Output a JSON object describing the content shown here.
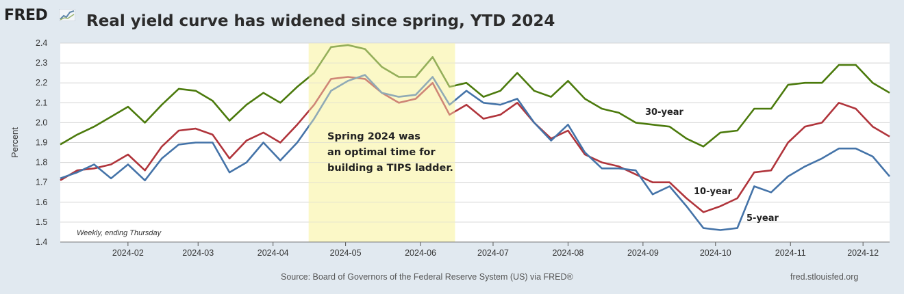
{
  "header": {
    "logo_text": "FRED",
    "title": "Real yield curve has widened since spring, YTD 2024"
  },
  "footer": {
    "source": "Source: Board of Governors of the Federal Reserve System (US) via FRED®",
    "site": "fred.stlouisfed.org"
  },
  "colors": {
    "background": "#e1e9f0",
    "plot_bg": "#ffffff",
    "highlight": "#fbf8c7",
    "thirty_year": "#4b7a0c",
    "ten_year": "#b0343b",
    "five_year": "#4473a8"
  },
  "chart_data": {
    "type": "line",
    "title": "Real yield curve has widened since spring, YTD 2024",
    "xlabel": "",
    "ylabel": "Percent",
    "ylim": [
      1.4,
      2.4
    ],
    "yticks": [
      "1.4",
      "1.5",
      "1.6",
      "1.7",
      "1.8",
      "1.9",
      "2.0",
      "2.1",
      "2.2",
      "2.3",
      "2.4"
    ],
    "xticks": [
      "2024-02",
      "2024-03",
      "2024-04",
      "2024-05",
      "2024-06",
      "2024-07",
      "2024-08",
      "2024-09",
      "2024-10",
      "2024-11",
      "2024-12"
    ],
    "x_start": "2024-01-04",
    "x_end": "2024-12-12",
    "frequency_note": "Weekly, ending Thursday",
    "annotation": [
      "Spring 2024 was",
      "an optimal time for",
      "building a TIPS ladder."
    ],
    "highlight_range": [
      "2024-04-18",
      "2024-06-13"
    ],
    "series": [
      {
        "name": "30-year",
        "values": [
          1.89,
          1.94,
          1.98,
          2.03,
          2.08,
          2.0,
          2.09,
          2.17,
          2.16,
          2.11,
          2.01,
          2.09,
          2.15,
          2.1,
          2.18,
          2.25,
          2.38,
          2.39,
          2.37,
          2.28,
          2.23,
          2.23,
          2.33,
          2.18,
          2.2,
          2.13,
          2.16,
          2.25,
          2.16,
          2.13,
          2.21,
          2.12,
          2.07,
          2.05,
          2.0,
          1.99,
          1.98,
          1.92,
          1.88,
          1.95,
          1.96,
          2.07,
          2.07,
          2.19,
          2.2,
          2.2,
          2.29,
          2.29,
          2.2,
          2.15
        ]
      },
      {
        "name": "10-year",
        "values": [
          1.71,
          1.76,
          1.77,
          1.79,
          1.84,
          1.76,
          1.88,
          1.96,
          1.97,
          1.94,
          1.82,
          1.91,
          1.95,
          1.9,
          1.99,
          2.09,
          2.22,
          2.23,
          2.22,
          2.15,
          2.1,
          2.12,
          2.2,
          2.04,
          2.09,
          2.02,
          2.04,
          2.1,
          2.0,
          1.92,
          1.96,
          1.84,
          1.8,
          1.78,
          1.74,
          1.7,
          1.7,
          1.62,
          1.55,
          1.58,
          1.62,
          1.75,
          1.76,
          1.9,
          1.98,
          2.0,
          2.1,
          2.07,
          1.98,
          1.93
        ]
      },
      {
        "name": "5-year",
        "values": [
          1.72,
          1.75,
          1.79,
          1.72,
          1.79,
          1.71,
          1.82,
          1.89,
          1.9,
          1.9,
          1.75,
          1.8,
          1.9,
          1.81,
          1.9,
          2.02,
          2.16,
          2.21,
          2.24,
          2.15,
          2.13,
          2.14,
          2.23,
          2.09,
          2.16,
          2.1,
          2.09,
          2.12,
          2.0,
          1.91,
          1.99,
          1.85,
          1.77,
          1.77,
          1.76,
          1.64,
          1.68,
          1.58,
          1.47,
          1.46,
          1.47,
          1.68,
          1.65,
          1.73,
          1.78,
          1.82,
          1.87,
          1.87,
          1.83,
          1.73
        ]
      }
    ]
  }
}
